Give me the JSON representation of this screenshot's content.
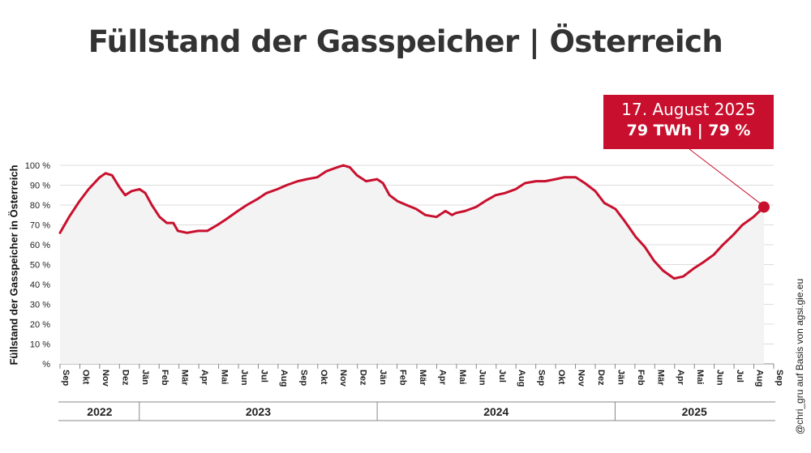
{
  "title": "Füllstand der Gasspeicher | Österreich",
  "callout": {
    "date": "17. August 2025",
    "value": "79 TWh | 79 %"
  },
  "credit": "@chri_gru auf Basis von agsi.gie.eu",
  "colors": {
    "line": "#c8102e",
    "area": "#f3f3f3",
    "grid": "#dcdcdc",
    "callout": "#c8102e"
  },
  "chart_data": {
    "type": "area",
    "title": "Füllstand der Gasspeicher | Österreich",
    "ylabel": "Füllstand der Gasspeicher in Österreich",
    "xlabel": "",
    "ylim": [
      0,
      100
    ],
    "yticks": [
      0,
      10,
      20,
      30,
      40,
      50,
      60,
      70,
      80,
      90,
      100
    ],
    "ytick_labels": [
      "%",
      "10 %",
      "20 %",
      "30 %",
      "40 %",
      "50 %",
      "60 %",
      "70 %",
      "80 %",
      "90 %",
      "100 %"
    ],
    "grid": true,
    "month_ticks": [
      "Sep",
      "Okt",
      "Nov",
      "Dez",
      "Jän",
      "Feb",
      "Mär",
      "Apr",
      "Mai",
      "Jun",
      "Jul",
      "Aug",
      "Sep",
      "Okt",
      "Nov",
      "Dez",
      "Jän",
      "Feb",
      "Mär",
      "Apr",
      "Mai",
      "Jun",
      "Jul",
      "Aug",
      "Sep",
      "Okt",
      "Nov",
      "Dez",
      "Jän",
      "Feb",
      "Mär",
      "Apr",
      "Mai",
      "Jun",
      "Jul",
      "Aug",
      "Sep"
    ],
    "years": [
      {
        "label": "2022",
        "start_month": 0,
        "end_month": 4
      },
      {
        "label": "2023",
        "start_month": 4,
        "end_month": 16
      },
      {
        "label": "2024",
        "start_month": 16,
        "end_month": 28
      },
      {
        "label": "2025",
        "start_month": 28,
        "end_month": 36
      }
    ],
    "series": [
      {
        "points": [
          [
            "2022-09-01",
            66
          ],
          [
            "2022-09-15",
            74
          ],
          [
            "2022-10-01",
            82
          ],
          [
            "2022-10-15",
            88
          ],
          [
            "2022-11-01",
            94
          ],
          [
            "2022-11-10",
            96
          ],
          [
            "2022-11-20",
            95
          ],
          [
            "2022-12-01",
            89
          ],
          [
            "2022-12-10",
            85
          ],
          [
            "2022-12-20",
            87
          ],
          [
            "2023-01-01",
            88
          ],
          [
            "2023-01-10",
            86
          ],
          [
            "2023-01-20",
            80
          ],
          [
            "2023-02-01",
            74
          ],
          [
            "2023-02-12",
            71
          ],
          [
            "2023-02-22",
            71
          ],
          [
            "2023-03-01",
            67
          ],
          [
            "2023-03-15",
            66
          ],
          [
            "2023-04-01",
            67
          ],
          [
            "2023-04-15",
            67
          ],
          [
            "2023-05-01",
            70
          ],
          [
            "2023-05-15",
            73
          ],
          [
            "2023-06-01",
            77
          ],
          [
            "2023-06-15",
            80
          ],
          [
            "2023-07-01",
            83
          ],
          [
            "2023-07-15",
            86
          ],
          [
            "2023-08-01",
            88
          ],
          [
            "2023-08-15",
            90
          ],
          [
            "2023-09-01",
            92
          ],
          [
            "2023-09-15",
            93
          ],
          [
            "2023-10-01",
            94
          ],
          [
            "2023-10-15",
            97
          ],
          [
            "2023-11-01",
            99
          ],
          [
            "2023-11-10",
            100
          ],
          [
            "2023-11-20",
            99
          ],
          [
            "2023-12-01",
            95
          ],
          [
            "2023-12-15",
            92
          ],
          [
            "2024-01-01",
            93
          ],
          [
            "2024-01-10",
            91
          ],
          [
            "2024-01-20",
            85
          ],
          [
            "2024-02-01",
            82
          ],
          [
            "2024-02-15",
            80
          ],
          [
            "2024-03-01",
            78
          ],
          [
            "2024-03-15",
            75
          ],
          [
            "2024-04-01",
            74
          ],
          [
            "2024-04-15",
            77
          ],
          [
            "2024-04-25",
            75
          ],
          [
            "2024-05-01",
            76
          ],
          [
            "2024-05-15",
            77
          ],
          [
            "2024-06-01",
            79
          ],
          [
            "2024-06-15",
            82
          ],
          [
            "2024-07-01",
            85
          ],
          [
            "2024-07-15",
            86
          ],
          [
            "2024-08-01",
            88
          ],
          [
            "2024-08-15",
            91
          ],
          [
            "2024-09-01",
            92
          ],
          [
            "2024-09-15",
            92
          ],
          [
            "2024-10-01",
            93
          ],
          [
            "2024-10-15",
            94
          ],
          [
            "2024-11-01",
            94
          ],
          [
            "2024-11-15",
            91
          ],
          [
            "2024-12-01",
            87
          ],
          [
            "2024-12-15",
            81
          ],
          [
            "2025-01-01",
            78
          ],
          [
            "2025-01-15",
            72
          ],
          [
            "2025-02-01",
            64
          ],
          [
            "2025-02-15",
            59
          ],
          [
            "2025-03-01",
            52
          ],
          [
            "2025-03-15",
            47
          ],
          [
            "2025-04-01",
            43
          ],
          [
            "2025-04-15",
            44
          ],
          [
            "2025-05-01",
            48
          ],
          [
            "2025-05-15",
            51
          ],
          [
            "2025-06-01",
            55
          ],
          [
            "2025-06-15",
            60
          ],
          [
            "2025-07-01",
            65
          ],
          [
            "2025-07-15",
            70
          ],
          [
            "2025-08-01",
            74
          ],
          [
            "2025-08-17",
            79
          ]
        ]
      }
    ],
    "highlight": {
      "date": "2025-08-17",
      "value": 79
    }
  }
}
